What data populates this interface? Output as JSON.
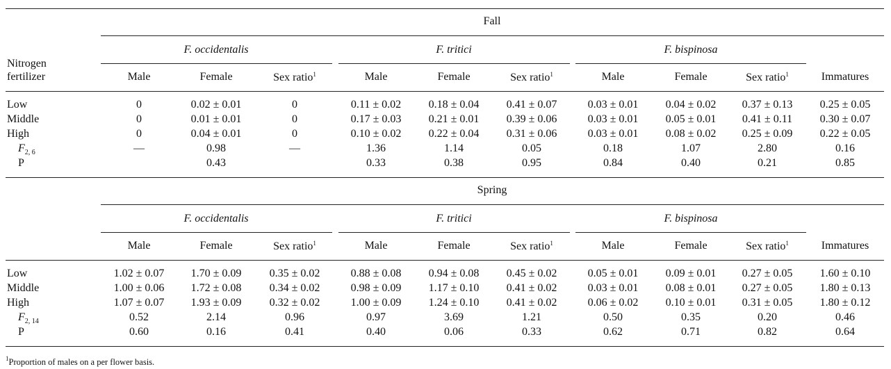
{
  "stub_header_line1": "Nitrogen",
  "stub_header_line2": "fertilizer",
  "species": [
    "F. occidentalis",
    "F. tritici",
    "F. bispinosa"
  ],
  "col_male": "Male",
  "col_female": "Female",
  "col_sexratio": "Sex ratio",
  "sexratio_note_mark": "1",
  "col_immatures": "Immatures",
  "stat_f_symbol": "F",
  "stat_p_label": "P",
  "sections": [
    {
      "season": "Fall",
      "f_subscript": "2, 6",
      "rows": [
        {
          "label": "Low",
          "values": [
            "0",
            "0.02 ± 0.01",
            "0",
            "0.11 ± 0.02",
            "0.18 ± 0.04",
            "0.41 ± 0.07",
            "0.03 ± 0.01",
            "0.04 ± 0.02",
            "0.37 ± 0.13",
            "0.25 ± 0.05"
          ]
        },
        {
          "label": "Middle",
          "values": [
            "0",
            "0.01 ± 0.01",
            "0",
            "0.17 ± 0.03",
            "0.21 ± 0.01",
            "0.39 ± 0.06",
            "0.03 ± 0.01",
            "0.05 ± 0.01",
            "0.41 ± 0.11",
            "0.30 ± 0.07"
          ]
        },
        {
          "label": "High",
          "values": [
            "0",
            "0.04 ± 0.01",
            "0",
            "0.10 ± 0.02",
            "0.22 ± 0.04",
            "0.31 ± 0.06",
            "0.03 ± 0.01",
            "0.08 ± 0.02",
            "0.25 ± 0.09",
            "0.22 ± 0.05"
          ]
        }
      ],
      "f_values": [
        "—",
        "0.98",
        "—",
        "1.36",
        "1.14",
        "0.05",
        "0.18",
        "1.07",
        "2.80",
        "0.16"
      ],
      "p_values": [
        "",
        "0.43",
        "",
        "0.33",
        "0.38",
        "0.95",
        "0.84",
        "0.40",
        "0.21",
        "0.85"
      ]
    },
    {
      "season": "Spring",
      "f_subscript": "2, 14",
      "rows": [
        {
          "label": "Low",
          "values": [
            "1.02 ± 0.07",
            "1.70 ± 0.09",
            "0.35 ± 0.02",
            "0.88 ± 0.08",
            "0.94 ± 0.08",
            "0.45 ± 0.02",
            "0.05 ± 0.01",
            "0.09 ± 0.01",
            "0.27 ± 0.05",
            "1.60 ± 0.10"
          ]
        },
        {
          "label": "Middle",
          "values": [
            "1.00 ± 0.06",
            "1.72 ± 0.08",
            "0.34 ± 0.02",
            "0.98 ± 0.09",
            "1.17 ± 0.10",
            "0.41 ± 0.02",
            "0.03 ± 0.01",
            "0.08 ± 0.01",
            "0.27 ± 0.05",
            "1.80 ± 0.13"
          ]
        },
        {
          "label": "High",
          "values": [
            "1.07 ± 0.07",
            "1.93 ± 0.09",
            "0.32 ± 0.02",
            "1.00 ± 0.09",
            "1.24 ± 0.10",
            "0.41 ± 0.02",
            "0.06 ± 0.02",
            "0.10 ± 0.01",
            "0.31 ± 0.05",
            "1.80 ± 0.12"
          ]
        }
      ],
      "f_values": [
        "0.52",
        "2.14",
        "0.96",
        "0.97",
        "3.69",
        "1.21",
        "0.50",
        "0.35",
        "0.20",
        "0.46"
      ],
      "p_values": [
        "0.60",
        "0.16",
        "0.41",
        "0.40",
        "0.06",
        "0.33",
        "0.62",
        "0.71",
        "0.82",
        "0.64"
      ]
    }
  ],
  "footnote_mark": "1",
  "footnote_text": "Proportion of males on a per flower basis."
}
